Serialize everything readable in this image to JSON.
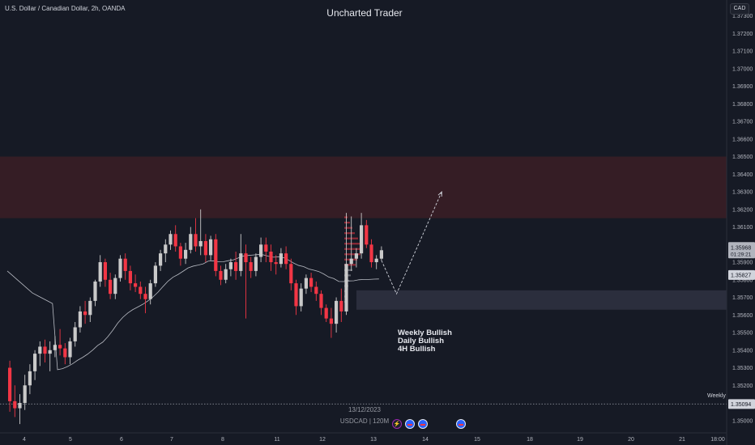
{
  "header": {
    "symbol_title": "U.S. Dollar / Canadian Dollar, 2h, OANDA",
    "brand": "Uncharted Trader",
    "currency_button": "CAD"
  },
  "annotations": {
    "bias": [
      "Weekly Bullish",
      "Daily Bullish",
      "4H Bullish"
    ],
    "weekly_level_label": "Weekly",
    "date_label": "13/12/2023",
    "interval_label": "USDCAD | 120M"
  },
  "price_badges": {
    "last_price": "1.35968",
    "countdown": "01:29:21",
    "ma_value": "1.35827",
    "weekly_value": "1.35094"
  },
  "events": [
    "bolt",
    "flag",
    "flag",
    "flag"
  ],
  "colors": {
    "background": "#161a25",
    "bull": "#c9c9c9",
    "bear": "#f23645",
    "supply_zone": "#3b1f26",
    "demand_zone": "#2d3140",
    "ma_line": "#b9bcc4",
    "axis_text": "#b2b5be",
    "last_price_badge": "#b2b5be",
    "ma_badge": "#d1d4dc"
  },
  "chart_data": {
    "type": "candlestick",
    "symbol": "USDCAD",
    "timeframe": "2h",
    "y_ticks": [
      "1.37300",
      "1.37200",
      "1.37100",
      "1.37000",
      "1.36900",
      "1.36800",
      "1.36700",
      "1.36600",
      "1.36500",
      "1.36400",
      "1.36300",
      "1.36200",
      "1.36100",
      "1.36000",
      "1.35900",
      "1.35800",
      "1.35700",
      "1.35600",
      "1.35500",
      "1.35400",
      "1.35300",
      "1.35200",
      "1.35100",
      "1.35000"
    ],
    "x_ticks": [
      "4",
      "5",
      "6",
      "7",
      "8",
      "11",
      "12",
      "13",
      "14",
      "15",
      "18",
      "19",
      "20",
      "21",
      "18:00"
    ],
    "ylim": [
      1.3493,
      1.3739
    ],
    "supply_zone": [
      1.3615,
      1.365
    ],
    "demand_zone": [
      1.3563,
      1.3574
    ],
    "weekly_level": 1.35094,
    "last_price": 1.35968,
    "ma_last": 1.35827,
    "projection": [
      {
        "bar": 74,
        "price": 1.3591
      },
      {
        "bar": 77,
        "price": 1.3572
      },
      {
        "bar": 86,
        "price": 1.363
      }
    ],
    "ohlc": [
      [
        1.353,
        1.3534,
        1.3505,
        1.3511
      ],
      [
        1.3511,
        1.352,
        1.3502,
        1.3507
      ],
      [
        1.3507,
        1.3515,
        1.3498,
        1.351
      ],
      [
        1.351,
        1.3526,
        1.3506,
        1.352
      ],
      [
        1.352,
        1.3532,
        1.3515,
        1.3528
      ],
      [
        1.3528,
        1.354,
        1.3523,
        1.3538
      ],
      [
        1.3538,
        1.3545,
        1.3531,
        1.3542
      ],
      [
        1.3542,
        1.3546,
        1.3533,
        1.3538
      ],
      [
        1.3538,
        1.3545,
        1.3528,
        1.354
      ],
      [
        1.354,
        1.3548,
        1.3536,
        1.3543
      ],
      [
        1.3543,
        1.3552,
        1.3537,
        1.3541
      ],
      [
        1.3541,
        1.3544,
        1.3532,
        1.3536
      ],
      [
        1.3536,
        1.3547,
        1.3532,
        1.3545
      ],
      [
        1.3545,
        1.3556,
        1.3542,
        1.3553
      ],
      [
        1.3553,
        1.3565,
        1.355,
        1.3562
      ],
      [
        1.3562,
        1.3568,
        1.3555,
        1.356
      ],
      [
        1.356,
        1.357,
        1.3556,
        1.3568
      ],
      [
        1.3568,
        1.358,
        1.3565,
        1.3579
      ],
      [
        1.3579,
        1.3594,
        1.3576,
        1.359
      ],
      [
        1.359,
        1.3592,
        1.3576,
        1.358
      ],
      [
        1.358,
        1.3584,
        1.3569,
        1.3572
      ],
      [
        1.3572,
        1.3583,
        1.3569,
        1.3581
      ],
      [
        1.3581,
        1.3594,
        1.3579,
        1.3592
      ],
      [
        1.3592,
        1.3595,
        1.358,
        1.3585
      ],
      [
        1.3585,
        1.3588,
        1.3574,
        1.3578
      ],
      [
        1.3578,
        1.3583,
        1.3573,
        1.3576
      ],
      [
        1.3576,
        1.3579,
        1.3569,
        1.3572
      ],
      [
        1.3572,
        1.3576,
        1.3561,
        1.3569
      ],
      [
        1.3569,
        1.358,
        1.3566,
        1.3578
      ],
      [
        1.3578,
        1.359,
        1.3576,
        1.3588
      ],
      [
        1.3588,
        1.3597,
        1.3585,
        1.3595
      ],
      [
        1.3595,
        1.3603,
        1.359,
        1.36
      ],
      [
        1.36,
        1.3608,
        1.3597,
        1.3606
      ],
      [
        1.3606,
        1.3611,
        1.3596,
        1.3599
      ],
      [
        1.3599,
        1.3601,
        1.3588,
        1.3592
      ],
      [
        1.3592,
        1.3601,
        1.3589,
        1.3597
      ],
      [
        1.3597,
        1.361,
        1.3595,
        1.3606
      ],
      [
        1.3606,
        1.3615,
        1.3596,
        1.3599
      ],
      [
        1.3599,
        1.362,
        1.3594,
        1.3602
      ],
      [
        1.3602,
        1.3606,
        1.359,
        1.3594
      ],
      [
        1.3594,
        1.3605,
        1.3591,
        1.3603
      ],
      [
        1.3603,
        1.3606,
        1.3582,
        1.3585
      ],
      [
        1.3585,
        1.3588,
        1.3577,
        1.358
      ],
      [
        1.358,
        1.3589,
        1.3578,
        1.3586
      ],
      [
        1.3586,
        1.3592,
        1.3582,
        1.359
      ],
      [
        1.359,
        1.3596,
        1.358,
        1.3585
      ],
      [
        1.3585,
        1.3606,
        1.3582,
        1.3595
      ],
      [
        1.3595,
        1.36,
        1.3558,
        1.359
      ],
      [
        1.359,
        1.3593,
        1.3581,
        1.3585
      ],
      [
        1.3585,
        1.3595,
        1.3582,
        1.3593
      ],
      [
        1.3593,
        1.3604,
        1.359,
        1.36
      ],
      [
        1.36,
        1.3604,
        1.359,
        1.3596
      ],
      [
        1.3596,
        1.36,
        1.3585,
        1.359
      ],
      [
        1.359,
        1.3594,
        1.3583,
        1.3589
      ],
      [
        1.3589,
        1.3598,
        1.3587,
        1.3595
      ],
      [
        1.3595,
        1.3599,
        1.3586,
        1.3589
      ],
      [
        1.3589,
        1.3592,
        1.3574,
        1.3578
      ],
      [
        1.3578,
        1.358,
        1.356,
        1.3565
      ],
      [
        1.3565,
        1.3578,
        1.3562,
        1.3575
      ],
      [
        1.3575,
        1.3583,
        1.3572,
        1.3581
      ],
      [
        1.3581,
        1.3584,
        1.3573,
        1.3576
      ],
      [
        1.3576,
        1.3579,
        1.3568,
        1.3572
      ],
      [
        1.3572,
        1.3574,
        1.356,
        1.3564
      ],
      [
        1.3564,
        1.3566,
        1.3556,
        1.3558
      ],
      [
        1.3558,
        1.3564,
        1.3547,
        1.3555
      ],
      [
        1.3555,
        1.357,
        1.355,
        1.3568
      ],
      [
        1.3568,
        1.3575,
        1.3556,
        1.3562
      ],
      [
        1.3562,
        1.3618,
        1.356,
        1.3589
      ],
      [
        1.3589,
        1.3616,
        1.3585,
        1.3592
      ],
      [
        1.3592,
        1.3598,
        1.3587,
        1.3595
      ],
      [
        1.3595,
        1.3618,
        1.3592,
        1.3611
      ],
      [
        1.3611,
        1.3614,
        1.3598,
        1.36
      ],
      [
        1.36,
        1.3603,
        1.3587,
        1.359
      ],
      [
        1.359,
        1.3594,
        1.3586,
        1.3592
      ],
      [
        1.3592,
        1.3599,
        1.3591,
        1.35968
      ]
    ]
  }
}
